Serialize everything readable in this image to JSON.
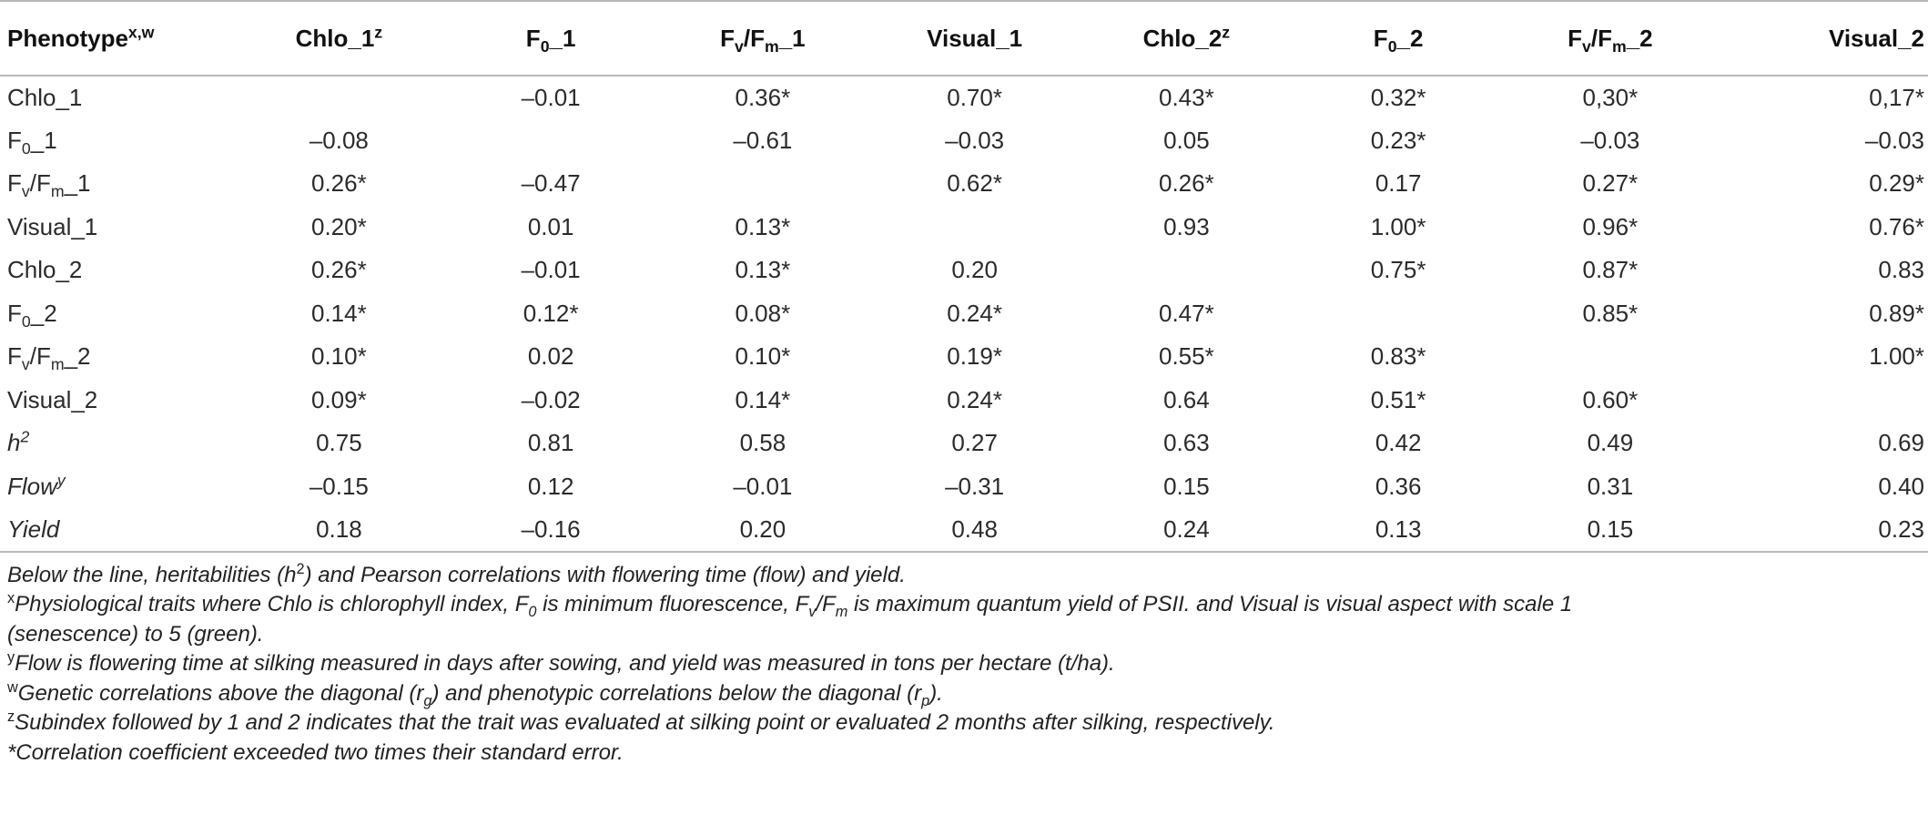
{
  "columns": [
    {
      "base": "Phenotype",
      "sup": "x,w"
    },
    {
      "base": "Chlo_1",
      "sup": "z"
    },
    {
      "base": "F",
      "sub": "0",
      "suffix": "_1"
    },
    {
      "base": "F",
      "sub": "v",
      "mid": "/F",
      "sub2": "m",
      "suffix": "_1"
    },
    {
      "base": "Visual_1"
    },
    {
      "base": "Chlo_2",
      "sup": "z"
    },
    {
      "base": "F",
      "sub": "0",
      "suffix": "_2"
    },
    {
      "base": "F",
      "sub": "v",
      "mid": "/F",
      "sub2": "m",
      "suffix": "_2"
    },
    {
      "base": "Visual_2"
    }
  ],
  "rows": [
    {
      "label": {
        "base": "Chlo_1"
      },
      "values": [
        "",
        "–0.01",
        "0.36*",
        "0.70*",
        "0.43*",
        "0.32*",
        "0,30*",
        "0,17*"
      ]
    },
    {
      "label": {
        "base": "F",
        "sub": "0",
        "suffix": "_1"
      },
      "values": [
        "–0.08",
        "",
        "–0.61",
        "–0.03",
        "0.05",
        "0.23*",
        "–0.03",
        "–0.03"
      ]
    },
    {
      "label": {
        "base": "F",
        "sub": "v",
        "mid": "/F",
        "sub2": "m",
        "suffix": "_1"
      },
      "values": [
        "0.26*",
        "–0.47",
        "",
        "0.62*",
        "0.26*",
        "0.17",
        "0.27*",
        "0.29*"
      ]
    },
    {
      "label": {
        "base": "Visual_1"
      },
      "values": [
        "0.20*",
        "0.01",
        "0.13*",
        "",
        "0.93",
        "1.00*",
        "0.96*",
        "0.76*"
      ]
    },
    {
      "label": {
        "base": "Chlo_2"
      },
      "values": [
        "0.26*",
        "–0.01",
        "0.13*",
        "0.20",
        "",
        "0.75*",
        "0.87*",
        "0.83"
      ]
    },
    {
      "label": {
        "base": "F",
        "sub": "0",
        "suffix": "_2"
      },
      "values": [
        "0.14*",
        "0.12*",
        "0.08*",
        "0.24*",
        "0.47*",
        "",
        "0.85*",
        "0.89*"
      ]
    },
    {
      "label": {
        "base": "F",
        "sub": "v",
        "mid": "/F",
        "sub2": "m",
        "suffix": "_2"
      },
      "values": [
        "0.10*",
        "0.02",
        "0.10*",
        "0.19*",
        "0.55*",
        "0.83*",
        "",
        "1.00*"
      ]
    },
    {
      "label": {
        "base": "Visual_2"
      },
      "values": [
        "0.09*",
        "–0.02",
        "0.14*",
        "0.24*",
        "0.64",
        "0.51*",
        "0.60*",
        ""
      ]
    },
    {
      "label": {
        "base": "h",
        "sup": "2",
        "italic": true
      },
      "values": [
        "0.75",
        "0.81",
        "0.58",
        "0.27",
        "0.63",
        "0.42",
        "0.49",
        "0.69"
      ]
    },
    {
      "label": {
        "base": "Flow",
        "sup": "y",
        "italic": true
      },
      "values": [
        "–0.15",
        "0.12",
        "–0.01",
        "–0.31",
        "0.15",
        "0.36",
        "0.31",
        "0.40"
      ]
    },
    {
      "label": {
        "base": "Yield",
        "italic": true
      },
      "values": [
        "0.18",
        "–0.16",
        "0.20",
        "0.48",
        "0.24",
        "0.13",
        "0.15",
        "0.23"
      ]
    }
  ],
  "notes": {
    "below_line_a": "Below the line, heritabilities (h",
    "below_line_sup": "2",
    "below_line_b": ") and Pearson correlations with flowering time (flow) and yield.",
    "x_mark": "x",
    "x_a": "Physiological traits where Chlo is chlorophyll index, F",
    "x_sub0": "0",
    "x_b": " is minimum fluorescence, F",
    "x_subv": "v",
    "x_c": "/F",
    "x_subm": "m",
    "x_d": " is maximum quantum yield of PSII. and Visual is visual aspect with scale 1",
    "x_e": "(senescence) to 5 (green).",
    "y_mark": "y",
    "y_text": "Flow is flowering time at silking measured in days after sowing, and yield was measured in tons per hectare (t/ha).",
    "w_mark": "w",
    "w_a": "Genetic correlations above the diagonal (r",
    "w_subg": "g",
    "w_b": ") and phenotypic correlations below the diagonal (r",
    "w_subp": "p",
    "w_c": ").",
    "z_mark": "z",
    "z_text": "Subindex followed by 1 and 2 indicates that the trait was evaluated at silking point or evaluated 2 months after silking, respectively.",
    "star_text": "*Correlation coefficient exceeded two times their standard error."
  }
}
